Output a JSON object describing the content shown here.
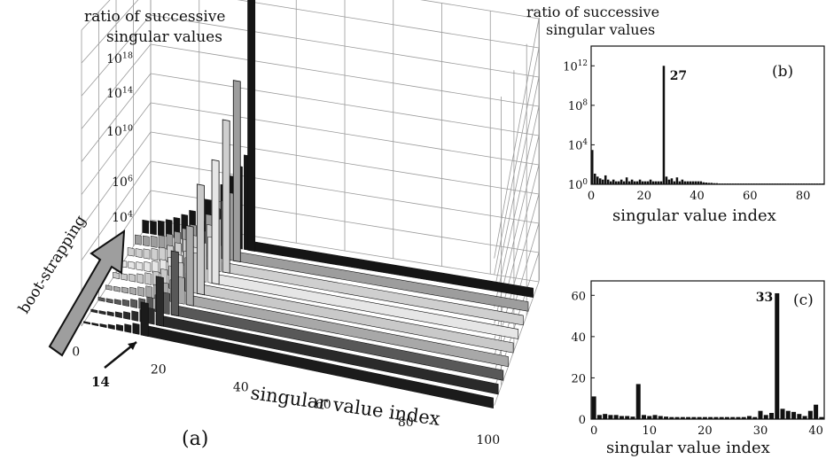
{
  "chart_data": [
    {
      "panel_label": "(a)",
      "type": "bar",
      "variant": "3d-stacked-series",
      "ylabel": "ratio of successive singular values",
      "xlabel": "singular value index",
      "depth_label": "boot-strapping",
      "y_scale": "log",
      "y_ticks": [
        "10^4",
        "10^6",
        "10^10",
        "10^14",
        "10^18"
      ],
      "ylim": [
        1,
        1e+18
      ],
      "x_ticks": [
        "0",
        "20",
        "40",
        "60",
        "80",
        "100"
      ],
      "xlim": [
        0,
        100
      ],
      "marker_label": "14",
      "marker_x": 14,
      "grid": true,
      "series": [
        {
          "peak_index": 14,
          "peak_value": 100.0
        },
        {
          "peak_index": 16,
          "peak_value": 1000.0
        },
        {
          "peak_index": 18,
          "peak_value": 10000.0
        },
        {
          "peak_index": 20,
          "peak_value": 100000.0
        },
        {
          "peak_index": 21,
          "peak_value": 10000000.0
        },
        {
          "peak_index": 23,
          "peak_value": 100000000.0
        },
        {
          "peak_index": 24,
          "peak_value": 10000000000.0
        },
        {
          "peak_index": 25,
          "peak_value": 1000000000000.0
        },
        {
          "peak_index": 27,
          "peak_value": 1e+17
        }
      ]
    },
    {
      "panel_label": "(b)",
      "type": "bar",
      "ylabel": "ratio of successive singular values",
      "xlabel": "singular value index",
      "y_scale": "log",
      "y_ticks": [
        "10^0",
        "10^4",
        "10^8",
        "10^12"
      ],
      "ylim": [
        1,
        100000000000000.0
      ],
      "x_ticks": [
        "0",
        "20",
        "40",
        "60",
        "80"
      ],
      "xlim": [
        0,
        88
      ],
      "annotation": "27",
      "x": [
        0,
        1,
        2,
        3,
        4,
        5,
        6,
        7,
        8,
        9,
        10,
        11,
        12,
        13,
        14,
        15,
        16,
        17,
        18,
        19,
        20,
        21,
        22,
        23,
        24,
        25,
        26,
        27,
        28,
        29,
        30,
        31,
        32,
        33,
        34,
        35,
        36,
        37,
        38,
        39,
        40,
        41,
        42,
        43,
        44,
        45,
        46,
        47,
        48,
        49,
        50,
        51,
        52,
        53,
        54,
        55,
        56,
        57,
        58,
        59,
        60,
        61,
        62,
        63,
        64,
        65,
        66,
        67,
        68,
        69,
        70,
        71,
        72,
        73,
        74,
        75,
        76,
        77,
        78,
        79,
        80,
        81,
        82,
        83,
        84,
        85,
        86,
        87
      ],
      "values": [
        3000,
        12,
        6,
        4,
        3,
        8,
        3,
        2,
        3,
        2,
        2,
        3,
        2,
        5,
        2,
        3,
        2,
        2,
        3,
        2,
        2,
        2,
        3,
        2,
        2,
        2,
        2,
        1000000000000.0,
        6,
        3,
        4,
        2,
        5,
        2,
        3,
        2,
        2,
        2,
        2,
        2,
        2,
        2,
        1.6,
        1.5,
        1.4,
        1.4,
        1.3,
        1.3,
        1.2,
        1.2,
        1.2,
        1.2,
        1.2,
        1.2,
        1.2,
        1.2,
        1.2,
        1.2,
        1.2,
        1.2,
        1.2,
        1.2,
        1.2,
        1.2,
        1.2,
        1.2,
        1.2,
        1.2,
        1.2,
        1.2,
        1.2,
        1.2,
        1.2,
        1.2,
        1.2,
        1.2,
        1.2,
        1.2,
        1.2,
        1.2,
        1.2,
        1.2,
        1.2,
        1.2,
        1.2,
        1.2,
        1.2,
        1.2
      ]
    },
    {
      "panel_label": "(c)",
      "type": "bar",
      "xlabel": "singular value index",
      "y_scale": "linear",
      "y_ticks": [
        "0",
        "20",
        "40",
        "60"
      ],
      "ylim": [
        0,
        67
      ],
      "x_ticks": [
        "0",
        "10",
        "20",
        "30",
        "40"
      ],
      "xlim": [
        -0.5,
        41.5
      ],
      "annotation": "33",
      "x": [
        0,
        1,
        2,
        3,
        4,
        5,
        6,
        7,
        8,
        9,
        10,
        11,
        12,
        13,
        14,
        15,
        16,
        17,
        18,
        19,
        20,
        21,
        22,
        23,
        24,
        25,
        26,
        27,
        28,
        29,
        30,
        31,
        32,
        33,
        34,
        35,
        36,
        37,
        38,
        39,
        40,
        41
      ],
      "values": [
        11,
        2,
        2.5,
        2,
        2,
        1.5,
        1.5,
        1.2,
        17,
        2,
        1.5,
        2,
        1.5,
        1.2,
        1,
        1,
        1,
        1,
        1,
        1,
        1,
        1,
        1,
        1,
        1,
        1,
        1,
        1,
        1.5,
        1,
        4,
        2,
        3,
        61,
        5,
        4,
        3.5,
        2.5,
        1.5,
        4,
        7,
        1
      ]
    }
  ]
}
